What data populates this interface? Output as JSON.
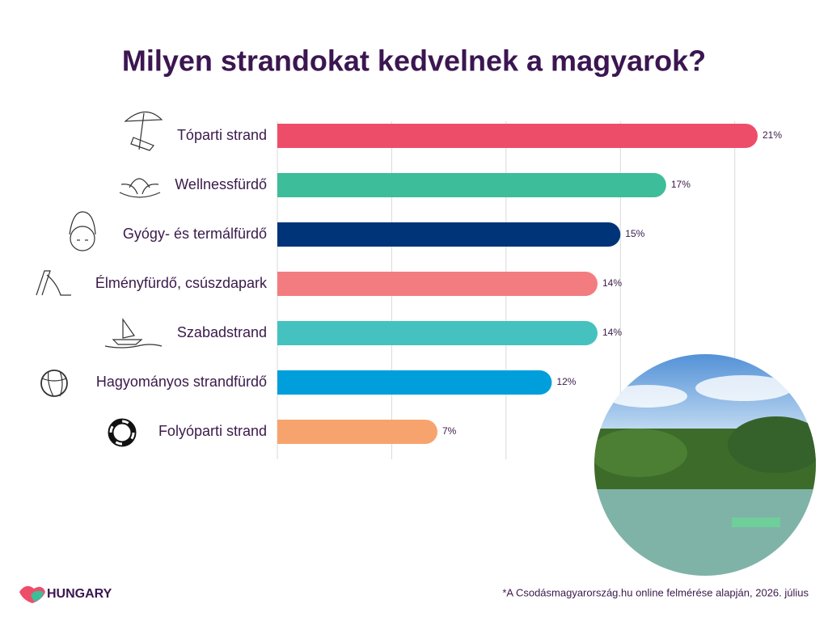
{
  "chart_data": {
    "type": "bar",
    "orientation": "horizontal",
    "title": "Milyen strandokat kedvelnek a magyarok?",
    "categories": [
      "Tóparti strand",
      "Wellnessfürdő",
      "Gyógy- és termálfürdő",
      "Élményfürdő, csúszdapark",
      "Szabadstrand",
      "Hagyományos strandfürdő",
      "Folyóparti strand"
    ],
    "values": [
      21,
      17,
      15,
      14,
      14,
      12,
      7
    ],
    "value_labels": [
      "21%",
      "17%",
      "15%",
      "14%",
      "14%",
      "12%",
      "7%"
    ],
    "colors": [
      "#ee4d6a",
      "#3dbd9a",
      "#003478",
      "#f37c80",
      "#45c2c0",
      "#009fdb",
      "#f7a36e"
    ],
    "xlim": [
      0,
      21
    ],
    "xticks": [
      0,
      5,
      10,
      15,
      20
    ],
    "grid": true
  },
  "logo": "HUNGARY",
  "footnote": "*A Csodásmagyarország.hu online felmérése alapján, 2026. július"
}
